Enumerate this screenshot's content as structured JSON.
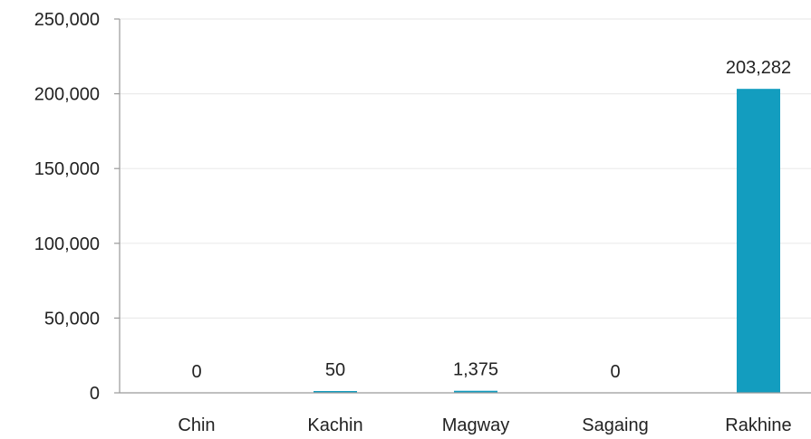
{
  "chart_data": {
    "type": "bar",
    "categories": [
      "Chin",
      "Kachin",
      "Magway",
      "Sagaing",
      "Rakhine"
    ],
    "values": [
      0,
      50,
      1375,
      0,
      203282
    ],
    "data_labels": [
      "0",
      "50",
      "1,375",
      "0",
      "203,282"
    ],
    "ylim": [
      0,
      250000
    ],
    "yticks": [
      0,
      50000,
      100000,
      150000,
      200000,
      250000
    ],
    "ytick_labels": [
      "0",
      "50,000",
      "100,000",
      "150,000",
      "200,000",
      "250,000"
    ],
    "grid": true,
    "legend": false,
    "bar_color": "#139dbf",
    "grid_color": "#ebebeb",
    "axis_color": "#9a9a9a",
    "text_color": "#222222"
  }
}
